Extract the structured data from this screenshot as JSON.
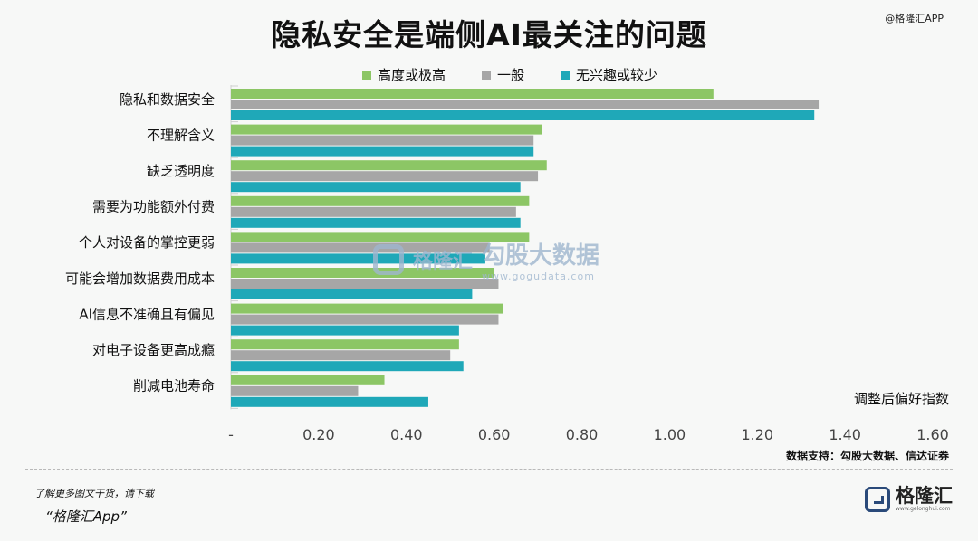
{
  "brand_top": "@格隆汇APP",
  "chart_data": {
    "type": "bar",
    "orientation": "horizontal",
    "title": "隐私安全是端侧AI最关注的问题",
    "categories": [
      "隐私和数据安全",
      "不理解含义",
      "缺乏透明度",
      "需要为功能额外付费",
      "个人对设备的掌控更弱",
      "可能会增加数据费用成本",
      "AI信息不准确且有偏见",
      "对电子设备更高成瘾",
      "削减电池寿命"
    ],
    "series": [
      {
        "name": "高度或极高",
        "color": "#8cc665",
        "values": [
          1.1,
          0.71,
          0.72,
          0.68,
          0.68,
          0.6,
          0.62,
          0.52,
          0.35
        ]
      },
      {
        "name": "一般",
        "color": "#a6a6a6",
        "values": [
          1.34,
          0.69,
          0.7,
          0.65,
          0.59,
          0.61,
          0.61,
          0.5,
          0.29
        ]
      },
      {
        "name": "无兴趣或较少",
        "color": "#1fa8b8",
        "values": [
          1.33,
          0.69,
          0.66,
          0.66,
          0.58,
          0.55,
          0.52,
          0.53,
          0.45
        ]
      }
    ],
    "xlim": [
      0,
      1.6
    ],
    "x_ticks": [
      "-",
      "0.20",
      "0.40",
      "0.60",
      "0.80",
      "1.00",
      "1.20",
      "1.40",
      "1.60"
    ],
    "xlabel": "调整后偏好指数",
    "legend_position": "top",
    "grid": false
  },
  "source": "数据支持：勾股大数据、信达证券",
  "watermark": {
    "name": "格隆汇",
    "cn": "勾股大数据",
    "url": "www.gogudata.com"
  },
  "footer": {
    "line1": "了解更多图文干货，请下载",
    "line2": "“格隆汇App”"
  },
  "logo": {
    "name": "格隆汇",
    "url": "www.gelonghui.com"
  }
}
